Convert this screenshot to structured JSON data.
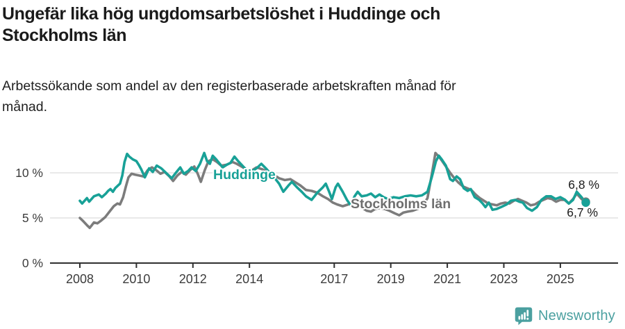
{
  "header": {
    "title_lines": [
      "Ungefär lika hög ungdomsarbetslöshet i Huddinge och",
      "Stockholms län"
    ],
    "subtitle_lines": [
      "Arbetssökande som andel av den registerbaserade arbetskraften månad för",
      "månad."
    ]
  },
  "chart_data": {
    "type": "line",
    "unit": "%",
    "title": "Ungefär lika hög ungdomsarbetslöshet i Huddinge och Stockholms län",
    "subtitle": "Arbetssökande som andel av den registerbaserade arbetskraften månad för månad.",
    "xlabel": "",
    "ylabel": "",
    "x_ticks": [
      2008,
      2010,
      2012,
      2014,
      2017,
      2019,
      2021,
      2023,
      2025
    ],
    "x_tick_labels": [
      "2008",
      "2010",
      "2012",
      "2014",
      "2017",
      "2019",
      "2021",
      "2023",
      "2025"
    ],
    "y_ticks": [
      0,
      5,
      10
    ],
    "y_tick_labels": [
      "0 %",
      "5 %",
      "10 %"
    ],
    "xlim": [
      2007.1,
      2027.0
    ],
    "ylim": [
      0,
      14.5
    ],
    "grid": "horizontal",
    "legend_position": "inline-labels",
    "colors": {
      "huddinge": "#18A197",
      "stockholms_lan": "#7C7C7C",
      "gridline": "#DCDCDC",
      "axis": "#2F2F2F",
      "text": "#3C3C3C"
    },
    "series": [
      {
        "name": "Stockholms län",
        "color": "#7C7C7C",
        "end_label": "6,8 %",
        "end_value": 6.8,
        "points": [
          [
            2008.0,
            5.0
          ],
          [
            2008.1,
            4.7
          ],
          [
            2008.25,
            4.2
          ],
          [
            2008.35,
            3.9
          ],
          [
            2008.5,
            4.5
          ],
          [
            2008.62,
            4.4
          ],
          [
            2008.75,
            4.7
          ],
          [
            2008.9,
            5.1
          ],
          [
            2009.05,
            5.7
          ],
          [
            2009.2,
            6.3
          ],
          [
            2009.33,
            6.6
          ],
          [
            2009.42,
            6.5
          ],
          [
            2009.53,
            7.3
          ],
          [
            2009.63,
            8.5
          ],
          [
            2009.72,
            9.5
          ],
          [
            2009.83,
            9.9
          ],
          [
            2009.95,
            9.8
          ],
          [
            2010.1,
            9.7
          ],
          [
            2010.25,
            9.6
          ],
          [
            2010.4,
            10.3
          ],
          [
            2010.55,
            10.6
          ],
          [
            2010.7,
            10.3
          ],
          [
            2010.85,
            9.9
          ],
          [
            2011.0,
            10.1
          ],
          [
            2011.17,
            9.6
          ],
          [
            2011.3,
            9.1
          ],
          [
            2011.45,
            9.7
          ],
          [
            2011.6,
            10.1
          ],
          [
            2011.75,
            9.8
          ],
          [
            2011.9,
            10.3
          ],
          [
            2012.05,
            10.7
          ],
          [
            2012.17,
            9.9
          ],
          [
            2012.28,
            9.0
          ],
          [
            2012.42,
            10.3
          ],
          [
            2012.55,
            11.3
          ],
          [
            2012.7,
            11.5
          ],
          [
            2012.85,
            11.2
          ],
          [
            2013.0,
            10.8
          ],
          [
            2013.2,
            10.9
          ],
          [
            2013.4,
            11.2
          ],
          [
            2013.55,
            11.0
          ],
          [
            2013.72,
            10.7
          ],
          [
            2013.88,
            10.4
          ],
          [
            2014.05,
            10.2
          ],
          [
            2014.25,
            10.6
          ],
          [
            2014.45,
            10.4
          ],
          [
            2014.65,
            10.1
          ],
          [
            2014.85,
            9.8
          ],
          [
            2015.05,
            9.4
          ],
          [
            2015.25,
            9.2
          ],
          [
            2015.45,
            9.3
          ],
          [
            2015.6,
            9.0
          ],
          [
            2015.8,
            8.6
          ],
          [
            2016.0,
            8.1
          ],
          [
            2016.2,
            8.0
          ],
          [
            2016.4,
            7.8
          ],
          [
            2016.6,
            7.4
          ],
          [
            2016.78,
            7.1
          ],
          [
            2016.95,
            6.7
          ],
          [
            2017.1,
            6.5
          ],
          [
            2017.3,
            6.3
          ],
          [
            2017.5,
            6.5
          ],
          [
            2017.65,
            6.6
          ],
          [
            2017.8,
            6.5
          ],
          [
            2017.95,
            6.2
          ],
          [
            2018.15,
            5.8
          ],
          [
            2018.3,
            5.7
          ],
          [
            2018.45,
            6.0
          ],
          [
            2018.6,
            6.1
          ],
          [
            2018.78,
            6.0
          ],
          [
            2018.95,
            5.8
          ],
          [
            2019.15,
            5.5
          ],
          [
            2019.3,
            5.3
          ],
          [
            2019.45,
            5.6
          ],
          [
            2019.6,
            5.7
          ],
          [
            2019.78,
            5.8
          ],
          [
            2019.95,
            6.0
          ],
          [
            2020.12,
            6.3
          ],
          [
            2020.3,
            7.2
          ],
          [
            2020.45,
            9.8
          ],
          [
            2020.58,
            12.2
          ],
          [
            2020.7,
            11.8
          ],
          [
            2020.82,
            11.3
          ],
          [
            2020.95,
            10.7
          ],
          [
            2021.1,
            10.0
          ],
          [
            2021.25,
            9.4
          ],
          [
            2021.4,
            8.9
          ],
          [
            2021.55,
            8.5
          ],
          [
            2021.7,
            8.3
          ],
          [
            2021.85,
            8.1
          ],
          [
            2022.0,
            7.6
          ],
          [
            2022.15,
            7.2
          ],
          [
            2022.3,
            6.9
          ],
          [
            2022.45,
            6.6
          ],
          [
            2022.6,
            6.5
          ],
          [
            2022.75,
            6.4
          ],
          [
            2022.9,
            6.6
          ],
          [
            2023.05,
            6.7
          ],
          [
            2023.2,
            6.6
          ],
          [
            2023.35,
            6.9
          ],
          [
            2023.5,
            7.1
          ],
          [
            2023.65,
            6.9
          ],
          [
            2023.8,
            6.7
          ],
          [
            2023.95,
            6.4
          ],
          [
            2024.1,
            6.5
          ],
          [
            2024.25,
            6.8
          ],
          [
            2024.4,
            7.0
          ],
          [
            2024.55,
            7.2
          ],
          [
            2024.7,
            7.1
          ],
          [
            2024.85,
            6.8
          ],
          [
            2025.0,
            7.0
          ],
          [
            2025.15,
            7.0
          ],
          [
            2025.3,
            6.6
          ],
          [
            2025.45,
            7.1
          ],
          [
            2025.58,
            7.7
          ],
          [
            2025.75,
            7.1
          ],
          [
            2025.9,
            6.8
          ]
        ]
      },
      {
        "name": "Huddinge",
        "color": "#18A197",
        "end_label": "6,7 %",
        "end_value": 6.7,
        "points": [
          [
            2008.0,
            6.9
          ],
          [
            2008.08,
            6.6
          ],
          [
            2008.25,
            7.2
          ],
          [
            2008.33,
            6.8
          ],
          [
            2008.5,
            7.4
          ],
          [
            2008.67,
            7.6
          ],
          [
            2008.78,
            7.3
          ],
          [
            2008.92,
            7.7
          ],
          [
            2009.0,
            8.0
          ],
          [
            2009.08,
            8.2
          ],
          [
            2009.17,
            7.9
          ],
          [
            2009.25,
            8.3
          ],
          [
            2009.42,
            8.8
          ],
          [
            2009.5,
            9.7
          ],
          [
            2009.58,
            11.2
          ],
          [
            2009.67,
            12.1
          ],
          [
            2009.75,
            11.8
          ],
          [
            2009.87,
            11.5
          ],
          [
            2010.0,
            11.3
          ],
          [
            2010.08,
            10.9
          ],
          [
            2010.17,
            10.4
          ],
          [
            2010.3,
            9.5
          ],
          [
            2010.45,
            10.5
          ],
          [
            2010.58,
            10.1
          ],
          [
            2010.72,
            10.8
          ],
          [
            2010.88,
            10.5
          ],
          [
            2011.05,
            10.0
          ],
          [
            2011.25,
            9.4
          ],
          [
            2011.42,
            10.1
          ],
          [
            2011.55,
            10.6
          ],
          [
            2011.68,
            9.9
          ],
          [
            2011.83,
            10.2
          ],
          [
            2011.95,
            10.6
          ],
          [
            2012.1,
            10.2
          ],
          [
            2012.25,
            11.0
          ],
          [
            2012.4,
            12.2
          ],
          [
            2012.5,
            11.3
          ],
          [
            2012.6,
            11.0
          ],
          [
            2012.7,
            11.9
          ],
          [
            2012.82,
            11.5
          ],
          [
            2012.95,
            11.0
          ],
          [
            2013.05,
            10.6
          ],
          [
            2013.2,
            10.9
          ],
          [
            2013.33,
            11.1
          ],
          [
            2013.47,
            11.8
          ],
          [
            2013.6,
            11.3
          ],
          [
            2013.75,
            10.8
          ],
          [
            2013.9,
            10.3
          ],
          [
            2014.05,
            10.1
          ],
          [
            2014.25,
            10.5
          ],
          [
            2014.42,
            11.0
          ],
          [
            2014.58,
            10.5
          ],
          [
            2014.75,
            9.9
          ],
          [
            2014.9,
            9.4
          ],
          [
            2015.05,
            8.8
          ],
          [
            2015.2,
            7.9
          ],
          [
            2015.38,
            8.6
          ],
          [
            2015.5,
            9.0
          ],
          [
            2015.68,
            8.4
          ],
          [
            2015.85,
            7.9
          ],
          [
            2016.0,
            7.4
          ],
          [
            2016.2,
            7.0
          ],
          [
            2016.4,
            7.8
          ],
          [
            2016.6,
            8.4
          ],
          [
            2016.7,
            8.8
          ],
          [
            2016.82,
            7.9
          ],
          [
            2016.92,
            7.1
          ],
          [
            2017.05,
            8.4
          ],
          [
            2017.13,
            8.8
          ],
          [
            2017.3,
            7.9
          ],
          [
            2017.45,
            7.0
          ],
          [
            2017.58,
            6.4
          ],
          [
            2017.72,
            7.4
          ],
          [
            2017.83,
            7.9
          ],
          [
            2017.97,
            7.4
          ],
          [
            2018.15,
            7.5
          ],
          [
            2018.3,
            7.7
          ],
          [
            2018.45,
            7.3
          ],
          [
            2018.6,
            7.6
          ],
          [
            2018.75,
            7.3
          ],
          [
            2018.9,
            7.1
          ],
          [
            2019.1,
            7.3
          ],
          [
            2019.3,
            7.2
          ],
          [
            2019.5,
            7.4
          ],
          [
            2019.7,
            7.5
          ],
          [
            2019.9,
            7.4
          ],
          [
            2020.1,
            7.5
          ],
          [
            2020.3,
            7.9
          ],
          [
            2020.45,
            9.5
          ],
          [
            2020.6,
            11.3
          ],
          [
            2020.7,
            11.9
          ],
          [
            2020.8,
            11.5
          ],
          [
            2020.95,
            10.8
          ],
          [
            2021.1,
            9.3
          ],
          [
            2021.2,
            9.1
          ],
          [
            2021.33,
            9.6
          ],
          [
            2021.45,
            9.3
          ],
          [
            2021.58,
            8.3
          ],
          [
            2021.72,
            8.0
          ],
          [
            2021.83,
            8.2
          ],
          [
            2021.97,
            7.3
          ],
          [
            2022.13,
            7.0
          ],
          [
            2022.25,
            6.6
          ],
          [
            2022.35,
            6.2
          ],
          [
            2022.47,
            6.7
          ],
          [
            2022.6,
            5.9
          ],
          [
            2022.75,
            6.0
          ],
          [
            2022.9,
            6.2
          ],
          [
            2023.1,
            6.5
          ],
          [
            2023.25,
            6.9
          ],
          [
            2023.4,
            7.0
          ],
          [
            2023.55,
            6.8
          ],
          [
            2023.67,
            6.7
          ],
          [
            2023.82,
            6.1
          ],
          [
            2024.0,
            5.8
          ],
          [
            2024.17,
            6.2
          ],
          [
            2024.33,
            7.0
          ],
          [
            2024.5,
            7.4
          ],
          [
            2024.67,
            7.4
          ],
          [
            2024.83,
            7.1
          ],
          [
            2025.0,
            7.3
          ],
          [
            2025.17,
            7.0
          ],
          [
            2025.3,
            6.6
          ],
          [
            2025.45,
            7.0
          ],
          [
            2025.58,
            7.9
          ],
          [
            2025.75,
            7.3
          ],
          [
            2025.9,
            6.7
          ]
        ]
      }
    ]
  },
  "footer": {
    "brand": "Newsworthy",
    "brand_color": "#4BA0A0",
    "logo_icon": "speech-bubble-bar-chart-icon"
  }
}
